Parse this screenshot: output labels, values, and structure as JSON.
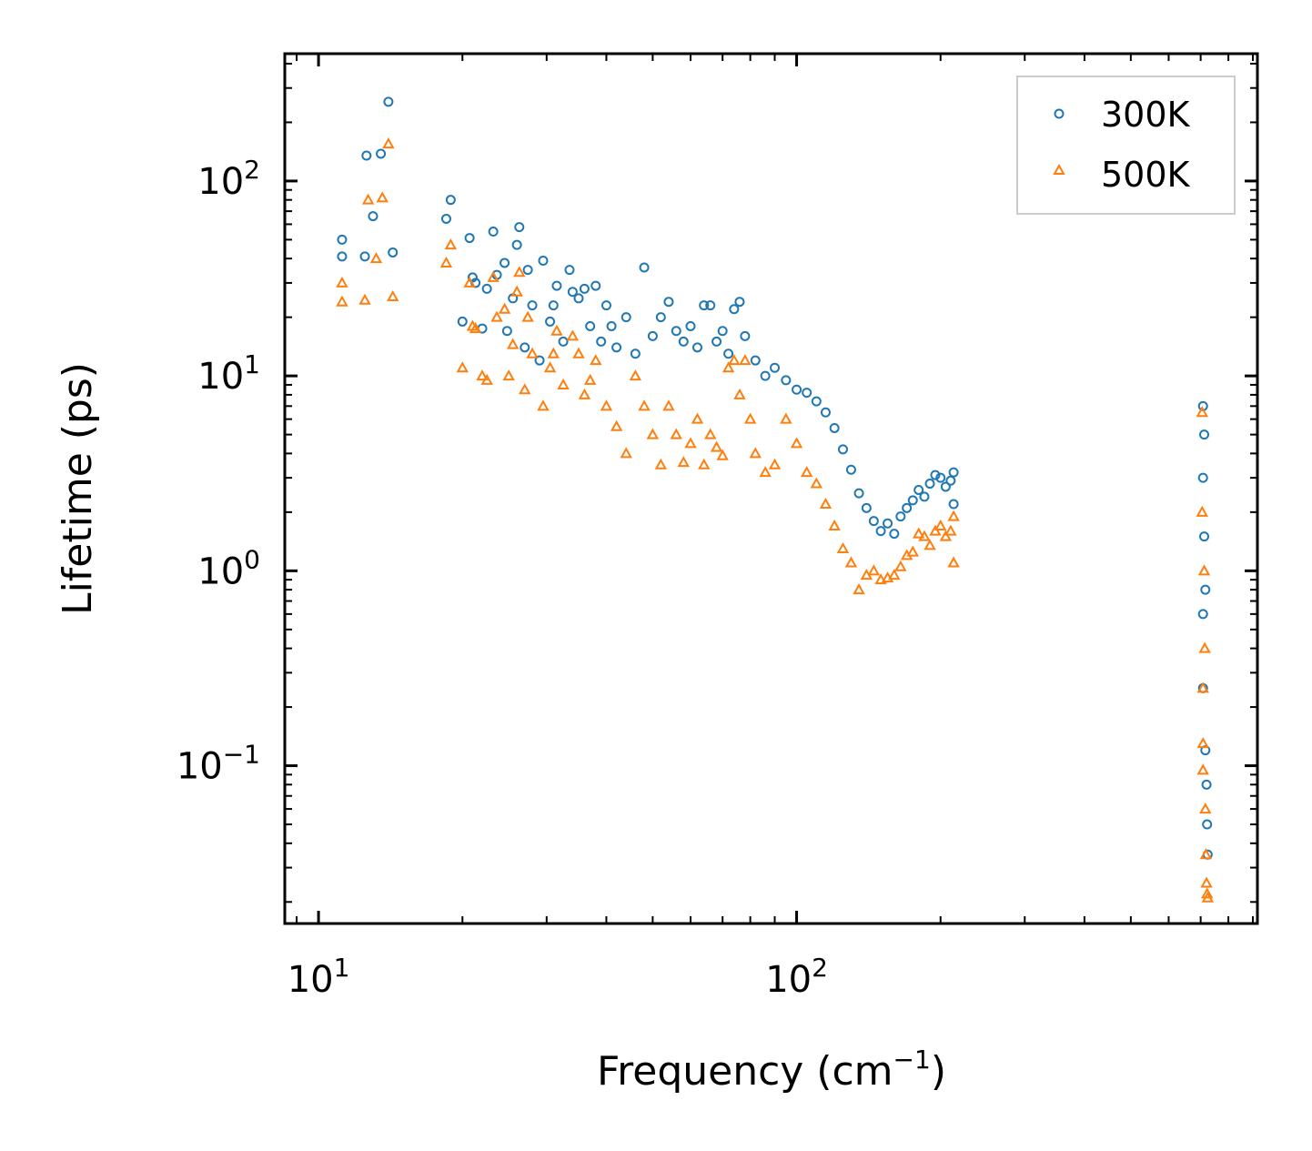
{
  "chart_data": {
    "type": "scatter",
    "xscale": "log",
    "yscale": "log",
    "title": "",
    "xlabel": "Frequency (cm",
    "xlabel_sup": "−1",
    "xlabel_end": ")",
    "ylabel": "Lifetime (ps)",
    "xlim": [
      8.5,
      920
    ],
    "ylim": [
      0.0155,
      450
    ],
    "x_ticks": [
      {
        "base": "10",
        "exp": "1",
        "value": 10
      },
      {
        "base": "10",
        "exp": "2",
        "value": 100
      }
    ],
    "y_ticks": [
      {
        "base": "10",
        "exp": "2",
        "value": 100
      },
      {
        "base": "10",
        "exp": "1",
        "value": 10
      },
      {
        "base": "10",
        "exp": "0",
        "value": 1
      },
      {
        "base": "10",
        "exp": "−1",
        "value": 0.1
      }
    ],
    "legend_position": "top-right",
    "series": [
      {
        "name": "300K",
        "marker": "circle",
        "color": "#1f77b4",
        "points": [
          [
            11.2,
            50
          ],
          [
            11.2,
            41
          ],
          [
            12.5,
            41
          ],
          [
            12.6,
            135
          ],
          [
            13,
            66
          ],
          [
            13.5,
            138
          ],
          [
            14,
            255
          ],
          [
            14.3,
            43
          ],
          [
            18.5,
            64
          ],
          [
            18.9,
            80
          ],
          [
            20,
            19
          ],
          [
            20.7,
            51
          ],
          [
            21,
            32
          ],
          [
            21.3,
            30
          ],
          [
            22,
            17.5
          ],
          [
            22.5,
            28
          ],
          [
            23.2,
            55
          ],
          [
            23.6,
            33
          ],
          [
            24.5,
            38
          ],
          [
            24.8,
            17
          ],
          [
            25.5,
            25
          ],
          [
            26,
            47
          ],
          [
            26.3,
            58
          ],
          [
            27,
            14
          ],
          [
            27.4,
            35
          ],
          [
            28,
            23
          ],
          [
            29,
            12
          ],
          [
            29.5,
            39
          ],
          [
            30.5,
            19
          ],
          [
            31,
            23
          ],
          [
            31.5,
            29
          ],
          [
            32.5,
            15
          ],
          [
            33.5,
            35
          ],
          [
            34,
            27
          ],
          [
            35,
            25
          ],
          [
            36,
            28
          ],
          [
            37,
            18
          ],
          [
            38,
            29
          ],
          [
            39,
            15
          ],
          [
            40,
            23
          ],
          [
            41,
            18
          ],
          [
            42,
            14
          ],
          [
            44,
            20
          ],
          [
            46,
            13
          ],
          [
            48,
            36
          ],
          [
            50,
            16
          ],
          [
            52,
            20
          ],
          [
            54,
            24
          ],
          [
            56,
            17
          ],
          [
            58,
            15
          ],
          [
            60,
            18
          ],
          [
            62,
            14
          ],
          [
            64,
            23
          ],
          [
            66,
            23
          ],
          [
            68,
            15
          ],
          [
            70,
            17
          ],
          [
            72,
            13
          ],
          [
            74,
            22
          ],
          [
            76,
            24
          ],
          [
            78,
            16
          ],
          [
            82,
            12
          ],
          [
            86,
            10
          ],
          [
            90,
            11
          ],
          [
            95,
            9.5
          ],
          [
            100,
            8.5
          ],
          [
            105,
            8.2
          ],
          [
            110,
            7.4
          ],
          [
            115,
            6.5
          ],
          [
            120,
            5.4
          ],
          [
            125,
            4.2
          ],
          [
            130,
            3.3
          ],
          [
            135,
            2.5
          ],
          [
            140,
            2.1
          ],
          [
            145,
            1.8
          ],
          [
            150,
            1.6
          ],
          [
            155,
            1.75
          ],
          [
            160,
            1.55
          ],
          [
            165,
            1.9
          ],
          [
            170,
            2.1
          ],
          [
            175,
            2.3
          ],
          [
            180,
            2.6
          ],
          [
            185,
            2.4
          ],
          [
            190,
            2.8
          ],
          [
            195,
            3.1
          ],
          [
            200,
            3.0
          ],
          [
            205,
            2.7
          ],
          [
            210,
            2.9
          ],
          [
            213,
            3.2
          ],
          [
            213,
            2.2
          ],
          [
            708,
            7
          ],
          [
            708,
            3
          ],
          [
            708,
            0.6
          ],
          [
            708,
            0.25
          ],
          [
            712,
            5
          ],
          [
            712,
            1.5
          ],
          [
            716,
            0.8
          ],
          [
            716,
            0.12
          ],
          [
            720,
            0.08
          ],
          [
            722,
            0.05
          ],
          [
            724,
            0.035
          ]
        ]
      },
      {
        "name": "500K",
        "marker": "triangle",
        "color": "#ff7f0e",
        "points": [
          [
            11.2,
            30
          ],
          [
            11.2,
            24
          ],
          [
            12.5,
            24.5
          ],
          [
            12.7,
            80
          ],
          [
            13.2,
            40
          ],
          [
            13.6,
            82
          ],
          [
            14,
            155
          ],
          [
            14.3,
            25.5
          ],
          [
            18.5,
            38
          ],
          [
            18.9,
            47
          ],
          [
            20,
            11
          ],
          [
            20.7,
            30
          ],
          [
            21,
            18
          ],
          [
            21.3,
            17.5
          ],
          [
            22,
            10
          ],
          [
            22.5,
            9.5
          ],
          [
            23.2,
            32
          ],
          [
            23.6,
            20
          ],
          [
            24.5,
            22
          ],
          [
            25,
            10
          ],
          [
            25.5,
            14.5
          ],
          [
            26,
            27
          ],
          [
            26.3,
            34
          ],
          [
            27,
            8.5
          ],
          [
            27.4,
            20
          ],
          [
            28,
            13
          ],
          [
            29.5,
            7
          ],
          [
            30.5,
            11
          ],
          [
            31,
            13
          ],
          [
            31.5,
            17
          ],
          [
            32.5,
            9
          ],
          [
            34,
            16
          ],
          [
            35,
            13
          ],
          [
            36,
            8
          ],
          [
            37,
            9.5
          ],
          [
            38,
            12
          ],
          [
            40,
            7
          ],
          [
            42,
            5.5
          ],
          [
            44,
            4
          ],
          [
            46,
            10
          ],
          [
            48,
            7
          ],
          [
            50,
            5
          ],
          [
            52,
            3.5
          ],
          [
            54,
            7
          ],
          [
            56,
            5
          ],
          [
            58,
            3.6
          ],
          [
            60,
            4.5
          ],
          [
            62,
            6
          ],
          [
            64,
            3.5
          ],
          [
            66,
            5
          ],
          [
            68,
            4.3
          ],
          [
            70,
            3.9
          ],
          [
            72,
            11
          ],
          [
            74,
            12
          ],
          [
            76,
            8
          ],
          [
            78,
            12
          ],
          [
            80,
            6
          ],
          [
            82,
            4
          ],
          [
            86,
            3.2
          ],
          [
            90,
            3.5
          ],
          [
            95,
            6
          ],
          [
            100,
            4.5
          ],
          [
            105,
            3.2
          ],
          [
            110,
            2.8
          ],
          [
            115,
            2.2
          ],
          [
            120,
            1.7
          ],
          [
            125,
            1.3
          ],
          [
            130,
            1.1
          ],
          [
            135,
            0.8
          ],
          [
            140,
            0.95
          ],
          [
            145,
            1.0
          ],
          [
            150,
            0.9
          ],
          [
            155,
            0.92
          ],
          [
            160,
            0.95
          ],
          [
            165,
            1.05
          ],
          [
            170,
            1.2
          ],
          [
            175,
            1.25
          ],
          [
            180,
            1.55
          ],
          [
            185,
            1.5
          ],
          [
            190,
            1.35
          ],
          [
            195,
            1.6
          ],
          [
            200,
            1.7
          ],
          [
            205,
            1.5
          ],
          [
            210,
            1.6
          ],
          [
            213,
            1.9
          ],
          [
            213,
            1.1
          ],
          [
            705,
            6.5
          ],
          [
            705,
            2
          ],
          [
            708,
            0.25
          ],
          [
            708,
            0.13
          ],
          [
            708,
            0.095
          ],
          [
            712,
            1
          ],
          [
            714,
            0.4
          ],
          [
            716,
            0.06
          ],
          [
            718,
            0.035
          ],
          [
            720,
            0.025
          ],
          [
            722,
            0.022
          ],
          [
            724,
            0.021
          ]
        ]
      }
    ]
  }
}
